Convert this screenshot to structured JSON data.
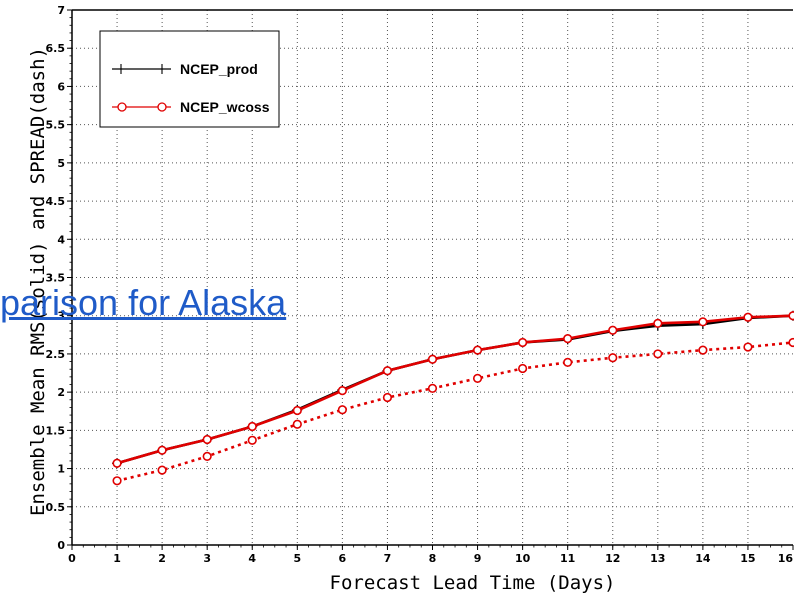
{
  "overlay": {
    "link_text": "parison for Alaska"
  },
  "chart_data": {
    "type": "line",
    "xlabel": "Forecast Lead Time (Days)",
    "ylabel": "Ensemble Mean RMS(solid) and SPREAD(dash)",
    "xlim": [
      0,
      16
    ],
    "ylim": [
      0,
      7
    ],
    "x_ticks": [
      "0",
      "1",
      "2",
      "3",
      "4",
      "5",
      "6",
      "7",
      "8",
      "9",
      "10",
      "11",
      "12",
      "13",
      "14",
      "15",
      "16"
    ],
    "y_ticks": [
      "0",
      "0.5",
      "1",
      "1.5",
      "2",
      "2.5",
      "3",
      "3.5",
      "4",
      "4.5",
      "5",
      "5.5",
      "6",
      "6.5",
      "7"
    ],
    "x": [
      1,
      2,
      3,
      4,
      5,
      6,
      7,
      8,
      9,
      10,
      11,
      12,
      13,
      14,
      15,
      16
    ],
    "grid": true,
    "legend_placement": "top-left",
    "series": [
      {
        "name": "NCEP_prod",
        "color": "#000000",
        "marker": "plus",
        "style": "solid",
        "values": [
          1.07,
          1.24,
          1.38,
          1.55,
          1.77,
          2.03,
          2.28,
          2.43,
          2.55,
          2.65,
          2.69,
          2.8,
          2.87,
          2.89,
          2.97,
          3.0
        ]
      },
      {
        "name": "NCEP_wcoss",
        "color": "#e00000",
        "marker": "circle",
        "style": "solid",
        "values": [
          1.07,
          1.24,
          1.38,
          1.55,
          1.76,
          2.02,
          2.28,
          2.43,
          2.55,
          2.65,
          2.7,
          2.81,
          2.9,
          2.92,
          2.98,
          3.0
        ]
      },
      {
        "color": "#e00000",
        "marker": "circle",
        "style": "dash",
        "values": [
          0.84,
          0.98,
          1.16,
          1.37,
          1.58,
          1.77,
          1.93,
          2.05,
          2.18,
          2.31,
          2.39,
          2.45,
          2.5,
          2.55,
          2.59,
          2.65
        ]
      }
    ]
  }
}
